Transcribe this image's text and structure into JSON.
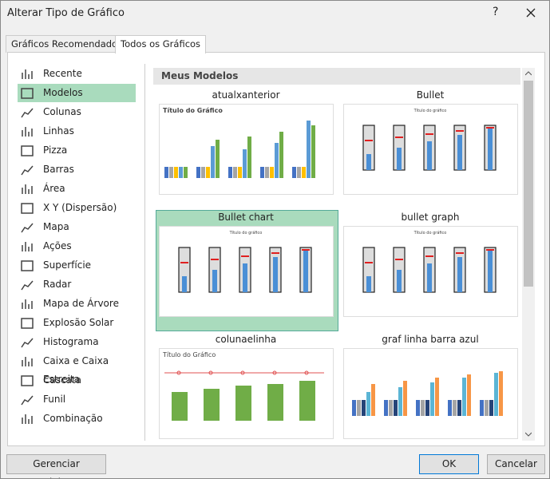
{
  "window": {
    "title": "Alterar Tipo de Gráfico",
    "help": "?"
  },
  "tabs": [
    "Gráficos Recomendados",
    "Todos os Gráficos"
  ],
  "chart_types": [
    "Recente",
    "Modelos",
    "Colunas",
    "Linhas",
    "Pizza",
    "Barras",
    "Área",
    "X Y (Dispersão)",
    "Mapa",
    "Ações",
    "Superfície",
    "Radar",
    "Mapa de Árvore",
    "Explosão Solar",
    "Histograma",
    "Caixa e Caixa Estreita",
    "Cascata",
    "Funil",
    "Combinação"
  ],
  "section": "Meus Modelos",
  "templates": [
    {
      "name": "atualxanterior",
      "chart_title": "Título do Gráfico"
    },
    {
      "name": "Bullet",
      "chart_title": "Título do gráfico"
    },
    {
      "name": "Bullet chart",
      "chart_title": "Título do gráfico"
    },
    {
      "name": "bullet graph",
      "chart_title": "Título do gráfico"
    },
    {
      "name": "colunaelinha",
      "chart_title": "Título do Gráfico"
    },
    {
      "name": "graf linha barra azul"
    }
  ],
  "buttons": {
    "manage": "Gerenciar Modelos...",
    "ok": "OK",
    "cancel": "Cancelar"
  }
}
